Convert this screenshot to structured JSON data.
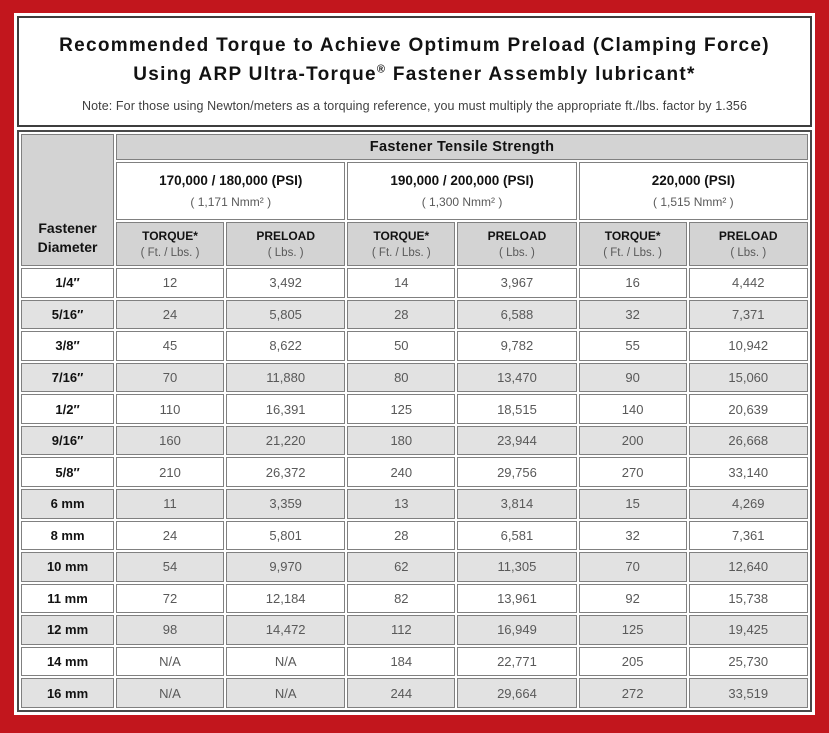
{
  "page": {
    "title_line1": "Recommended Torque to Achieve Optimum Preload (Clamping Force)",
    "title_line2_pre": "Using ARP Ultra-Torque",
    "title_reg_mark": "®",
    "title_line2_post": " Fastener Assembly lubricant*",
    "note": "Note: For those using Newton/meters as a torquing reference, you must multiply the appropriate ft./lbs. factor by 1.356"
  },
  "colors": {
    "frame_red": "#c2161d",
    "header_gray": "#d3d3d3",
    "stripe_gray": "#e2e2e2",
    "table_border": "#4a4a4a",
    "cell_border": "#808080",
    "data_text": "#595959"
  },
  "table": {
    "group_header": "Fastener Tensile Strength",
    "diameter_header_line1": "Fastener",
    "diameter_header_line2": "Diameter",
    "strength_columns": [
      {
        "psi": "170,000 / 180,000 (PSI)",
        "nmm": "( 1,171 Nmm² )"
      },
      {
        "psi": "190,000 / 200,000 (PSI)",
        "nmm": "( 1,300 Nmm² )"
      },
      {
        "psi": "220,000 (PSI)",
        "nmm": "( 1,515 Nmm² )"
      }
    ],
    "sub_headers": {
      "torque_label": "TORQUE*",
      "torque_unit": "( Ft. / Lbs. )",
      "preload_label": "PRELOAD",
      "preload_unit": "( Lbs. )"
    },
    "rows": [
      {
        "diameter": "1/4″",
        "values": [
          "12",
          "3,492",
          "14",
          "3,967",
          "16",
          "4,442"
        ]
      },
      {
        "diameter": "5/16″",
        "values": [
          "24",
          "5,805",
          "28",
          "6,588",
          "32",
          "7,371"
        ]
      },
      {
        "diameter": "3/8″",
        "values": [
          "45",
          "8,622",
          "50",
          "9,782",
          "55",
          "10,942"
        ]
      },
      {
        "diameter": "7/16″",
        "values": [
          "70",
          "11,880",
          "80",
          "13,470",
          "90",
          "15,060"
        ]
      },
      {
        "diameter": "1/2″",
        "values": [
          "110",
          "16,391",
          "125",
          "18,515",
          "140",
          "20,639"
        ]
      },
      {
        "diameter": "9/16″",
        "values": [
          "160",
          "21,220",
          "180",
          "23,944",
          "200",
          "26,668"
        ]
      },
      {
        "diameter": "5/8″",
        "values": [
          "210",
          "26,372",
          "240",
          "29,756",
          "270",
          "33,140"
        ]
      },
      {
        "diameter": "6 mm",
        "values": [
          "11",
          "3,359",
          "13",
          "3,814",
          "15",
          "4,269"
        ]
      },
      {
        "diameter": "8 mm",
        "values": [
          "24",
          "5,801",
          "28",
          "6,581",
          "32",
          "7,361"
        ]
      },
      {
        "diameter": "10 mm",
        "values": [
          "54",
          "9,970",
          "62",
          "11,305",
          "70",
          "12,640"
        ]
      },
      {
        "diameter": "11 mm",
        "values": [
          "72",
          "12,184",
          "82",
          "13,961",
          "92",
          "15,738"
        ]
      },
      {
        "diameter": "12 mm",
        "values": [
          "98",
          "14,472",
          "112",
          "16,949",
          "125",
          "19,425"
        ]
      },
      {
        "diameter": "14 mm",
        "values": [
          "N/A",
          "N/A",
          "184",
          "22,771",
          "205",
          "25,730"
        ]
      },
      {
        "diameter": "16 mm",
        "values": [
          "N/A",
          "N/A",
          "244",
          "29,664",
          "272",
          "33,519"
        ]
      }
    ]
  }
}
